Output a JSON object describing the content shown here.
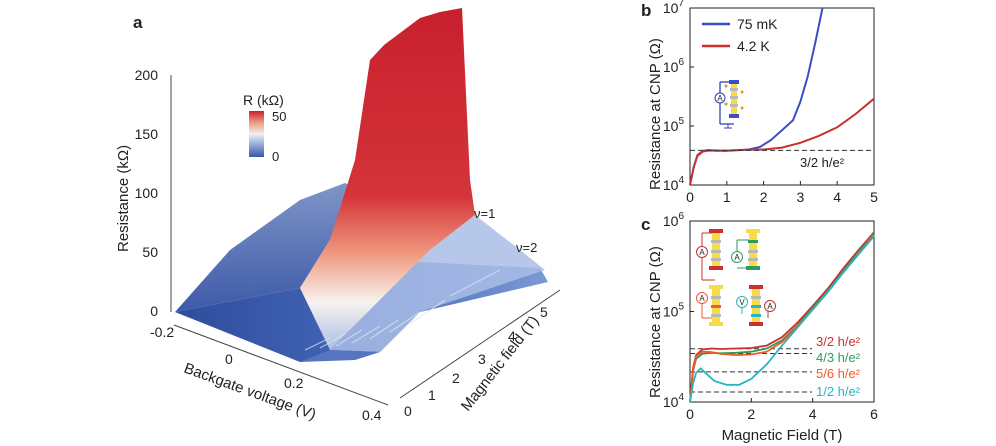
{
  "colors": {
    "blue_75mK": "#3b4fc4",
    "red_4K": "#cc2f2f",
    "curve_3_2": "#cc2f2f",
    "curve_4_3": "#2e9a5c",
    "curve_5_6": "#f05a28",
    "curve_1_2": "#2ab3c4",
    "surface_high": "#c8202e",
    "surface_low": "#3a56a8"
  },
  "icons": [
    "ammeter-icon",
    "voltmeter-icon",
    "hall-bar-device-icon"
  ],
  "chart_data": [
    {
      "panel": "a",
      "type": "surface3d",
      "zlabel": "Resistance (kΩ)",
      "xlabel": "Backgate voltage (V)",
      "ylabel": "Magnetic field (T)",
      "zticks": [
        "0",
        "50",
        "100",
        "150",
        "200"
      ],
      "xticks": [
        "-0.2",
        "0",
        "0.2",
        "0.4"
      ],
      "yticks": [
        "0",
        "1",
        "2",
        "3",
        "4",
        "5"
      ],
      "colorbar": {
        "label": "R (kΩ)",
        "ticks": [
          "50",
          "0"
        ],
        "range": [
          0,
          50
        ]
      },
      "annotations": [
        "ν=1",
        "ν=2"
      ]
    },
    {
      "panel": "b",
      "type": "line",
      "ylabel": "Resistance at CNP (Ω)",
      "xlabel": "",
      "xlim": [
        0,
        5
      ],
      "ylim": [
        10000,
        10000000
      ],
      "yscale": "log",
      "xticks": [
        "0",
        "1",
        "2",
        "3",
        "4",
        "5"
      ],
      "yticks": [
        {
          "base": "10",
          "exp": "4"
        },
        {
          "base": "10",
          "exp": "5"
        },
        {
          "base": "10",
          "exp": "6"
        },
        {
          "base": "10",
          "exp": "7"
        }
      ],
      "legend": [
        "75 mK",
        "4.2 K"
      ],
      "reference_line": {
        "y": 38700,
        "label": "3/2 h/e²"
      },
      "series": [
        {
          "name": "75 mK",
          "x": [
            0,
            0.1,
            0.2,
            0.35,
            0.5,
            0.7,
            1.0,
            1.3,
            1.6,
            1.9,
            2.2,
            2.5,
            2.8,
            3.0,
            3.2,
            3.4,
            3.6
          ],
          "y": [
            10000,
            20000,
            32000,
            38000,
            39000,
            38500,
            38000,
            39000,
            40000,
            44000,
            58000,
            85000,
            125000,
            260000,
            700000,
            2500000,
            10000000
          ]
        },
        {
          "name": "4.2 K",
          "x": [
            0,
            0.1,
            0.2,
            0.35,
            0.5,
            0.7,
            1.0,
            1.3,
            1.6,
            2.0,
            2.5,
            3.0,
            3.5,
            4.0,
            4.5,
            5.0
          ],
          "y": [
            10000,
            20000,
            31000,
            37000,
            38500,
            38000,
            38000,
            39000,
            39500,
            40000,
            43000,
            52000,
            68000,
            95000,
            160000,
            290000
          ]
        }
      ]
    },
    {
      "panel": "c",
      "type": "line",
      "ylabel": "Resistance at CNP (Ω)",
      "xlabel": "Magnetic Field (T)",
      "xlim": [
        0,
        6
      ],
      "ylim": [
        10000,
        1000000
      ],
      "yscale": "log",
      "xticks": [
        "0",
        "2",
        "4",
        "6"
      ],
      "yticks": [
        {
          "base": "10",
          "exp": "4"
        },
        {
          "base": "10",
          "exp": "5"
        },
        {
          "base": "10",
          "exp": "6"
        }
      ],
      "reference_lines": [
        {
          "y": 38700,
          "label": "3/2 h/e²",
          "color": "#cc2f2f"
        },
        {
          "y": 34400,
          "label": "4/3 h/e²",
          "color": "#2e9a5c"
        },
        {
          "y": 21500,
          "label": "5/6 h/e²",
          "color": "#f05a28"
        },
        {
          "y": 12900,
          "label": "1/2 h/e²",
          "color": "#2ab3c4"
        }
      ],
      "series": [
        {
          "color": "#cc2f2f",
          "x": [
            0,
            0.1,
            0.2,
            0.4,
            0.7,
            1.0,
            1.5,
            2.0,
            2.5,
            3.0,
            3.5,
            4.0,
            4.5,
            5.0,
            5.5,
            6.0
          ],
          "y": [
            10000,
            24000,
            33000,
            38000,
            39000,
            38500,
            39000,
            39500,
            42000,
            52000,
            75000,
            115000,
            180000,
            300000,
            480000,
            750000
          ]
        },
        {
          "color": "#2e9a5c",
          "x": [
            0,
            0.1,
            0.2,
            0.4,
            0.7,
            1.0,
            1.5,
            2.0,
            2.5,
            3.0,
            3.5,
            4.0,
            4.5,
            5.0,
            5.5,
            6.0
          ],
          "y": [
            10000,
            22000,
            30000,
            34000,
            35000,
            34500,
            35000,
            36000,
            39000,
            48000,
            70000,
            110000,
            170000,
            280000,
            460000,
            720000
          ]
        },
        {
          "color": "#f05a28",
          "x": [
            0,
            0.1,
            0.2,
            0.4,
            0.7,
            1.0,
            1.5,
            2.0,
            2.5,
            3.0,
            3.5,
            4.0,
            4.5,
            5.0,
            5.5,
            6.0
          ],
          "y": [
            10000,
            22000,
            32000,
            36000,
            35500,
            34000,
            33000,
            33500,
            36000,
            46000,
            68000,
            105000,
            165000,
            270000,
            440000,
            700000
          ]
        },
        {
          "color": "#2ab3c4",
          "x": [
            0,
            0.1,
            0.2,
            0.35,
            0.5,
            0.8,
            1.2,
            1.6,
            2.0,
            2.5,
            3.0,
            3.5,
            4.0,
            4.5,
            5.0,
            5.5,
            6.0
          ],
          "y": [
            10000,
            16000,
            21000,
            23500,
            21000,
            17000,
            15500,
            15500,
            18000,
            26000,
            42000,
            66000,
            105000,
            165000,
            270000,
            430000,
            680000
          ]
        }
      ]
    }
  ]
}
